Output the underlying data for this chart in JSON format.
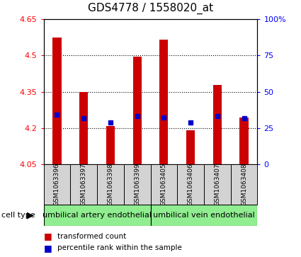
{
  "title": "GDS4778 / 1558020_at",
  "samples": [
    "GSM1063396",
    "GSM1063397",
    "GSM1063398",
    "GSM1063399",
    "GSM1063405",
    "GSM1063406",
    "GSM1063407",
    "GSM1063408"
  ],
  "transformed_count": [
    4.575,
    4.35,
    4.21,
    4.495,
    4.565,
    4.19,
    4.38,
    4.245
  ],
  "percentile_rank": [
    4.255,
    4.24,
    4.225,
    4.25,
    4.245,
    4.225,
    4.25,
    4.24
  ],
  "bar_bottom": 4.05,
  "ylim_left": [
    4.05,
    4.65
  ],
  "ylim_right": [
    0,
    100
  ],
  "yticks_left": [
    4.05,
    4.2,
    4.35,
    4.5,
    4.65
  ],
  "yticks_right": [
    0,
    25,
    50,
    75,
    100
  ],
  "ytick_labels_left": [
    "4.05",
    "4.2",
    "4.35",
    "4.5",
    "4.65"
  ],
  "ytick_labels_right": [
    "0",
    "25",
    "50",
    "75",
    "100%"
  ],
  "bar_color": "#cc0000",
  "percentile_color": "#0000cc",
  "group1_label": "umbilical artery endothelial",
  "group2_label": "umbilical vein endothelial",
  "group1_count": 4,
  "group2_count": 4,
  "cell_type_label": "cell type",
  "legend_bar_label": "transformed count",
  "legend_dot_label": "percentile rank within the sample",
  "sample_bg_color": "#d3d3d3",
  "group_bg_color": "#90ee90",
  "plot_bg_color": "#ffffff",
  "grid_color": "#000000",
  "title_fontsize": 11,
  "tick_fontsize": 8,
  "group_fontsize": 8,
  "sample_fontsize": 6.5,
  "legend_fontsize": 7.5
}
